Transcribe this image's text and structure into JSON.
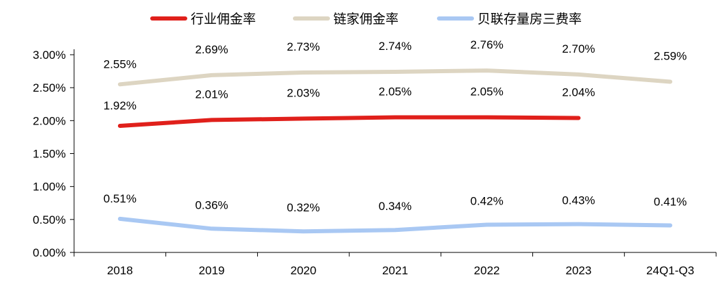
{
  "chart_data": {
    "type": "line",
    "categories": [
      "2018",
      "2019",
      "2020",
      "2021",
      "2022",
      "2023",
      "24Q1-Q3"
    ],
    "ylim": [
      0,
      3
    ],
    "yticks": [
      "0.00%",
      "0.50%",
      "1.00%",
      "1.50%",
      "2.00%",
      "2.50%",
      "3.00%"
    ],
    "grid": false,
    "legend_position": "top-center",
    "series": [
      {
        "name": "行业佣金率",
        "color": "#e0201b",
        "values": [
          1.92,
          2.01,
          2.03,
          2.05,
          2.05,
          2.04,
          null
        ],
        "labels": [
          "1.92%",
          "2.01%",
          "2.03%",
          "2.05%",
          "2.05%",
          "2.04%",
          null
        ]
      },
      {
        "name": "链家佣金率",
        "color": "#ddd5c2",
        "values": [
          2.55,
          2.69,
          2.73,
          2.74,
          2.76,
          2.7,
          2.59
        ],
        "labels": [
          "2.55%",
          "2.69%",
          "2.73%",
          "2.74%",
          "2.76%",
          "2.70%",
          "2.59%"
        ]
      },
      {
        "name": "贝联存量房三费率",
        "color": "#a9c8f3",
        "values": [
          0.51,
          0.36,
          0.32,
          0.34,
          0.42,
          0.43,
          0.41
        ],
        "labels": [
          "0.51%",
          "0.36%",
          "0.32%",
          "0.34%",
          "0.42%",
          "0.43%",
          "0.41%"
        ]
      }
    ]
  }
}
